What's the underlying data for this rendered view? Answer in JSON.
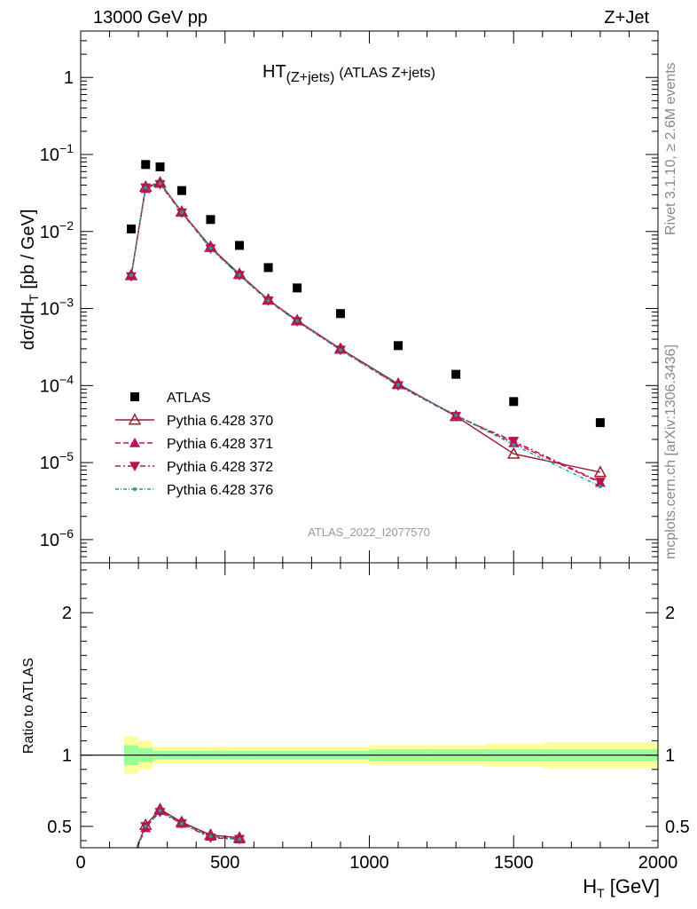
{
  "header": {
    "left": "13000 GeV pp",
    "right": "Z+Jet",
    "title_main": "HT",
    "title_sub": "(Z+jets)",
    "title_rest": "(ATLAS Z+jets)",
    "analysis_id": "ATLAS_2022_I2077570"
  },
  "side_labels": {
    "rivet": "Rivet 3.1.10, ≥ 2.6M events",
    "mcplots": "mcplots.cern.ch [arXiv:1306.3436]"
  },
  "axes": {
    "ylabel_main": "dσ/dH",
    "ylabel_main_sub": "T",
    "ylabel_main_unit": " [pb / GeV]",
    "ylabel_ratio": "Ratio to ATLAS",
    "xlabel": "H",
    "xlabel_sub": "T",
    "xlabel_unit": " [GeV]"
  },
  "colors": {
    "atlas": "#000000",
    "p370": "#9b1b30",
    "p371": "#c0145a",
    "p372": "#b8124f",
    "p376": "#1e9e96",
    "band_inner": "#99ff99",
    "band_outer": "#ffff99"
  },
  "chart_data": {
    "type": "scatter",
    "log_y": true,
    "xlim": [
      0,
      2000
    ],
    "ylim": [
      5e-07,
      4
    ],
    "ratio_ylim": [
      0.35,
      2.35
    ],
    "x_ticks": [
      "0",
      "500",
      "1000",
      "1500",
      "2000"
    ],
    "y_ticks": [
      "10^-6",
      "10^-5",
      "10^-4",
      "10^-3",
      "10^-2",
      "10^-1",
      "1"
    ],
    "ratio_ticks": [
      "0.5",
      "1",
      "2"
    ],
    "x": [
      175,
      225,
      275,
      350,
      450,
      550,
      650,
      750,
      900,
      1100,
      1300,
      1500,
      1800
    ],
    "x_edges": [
      150,
      200,
      250,
      300,
      400,
      500,
      600,
      700,
      800,
      1000,
      1200,
      1400,
      1600,
      2000
    ],
    "series": [
      {
        "name": "ATLAS",
        "style": "square",
        "values": [
          0.0108,
          0.074,
          0.069,
          0.034,
          0.0143,
          0.0066,
          0.0034,
          0.00185,
          0.00086,
          0.00033,
          0.00014,
          6.2e-05,
          3.3e-05
        ]
      },
      {
        "name": "Pythia 6.428 370",
        "style": "open-triangle-up",
        "values": [
          0.0027,
          0.038,
          0.043,
          0.018,
          0.0063,
          0.0028,
          0.0013,
          0.0007,
          0.0003,
          0.000105,
          4e-05,
          1.3e-05,
          7.5e-06
        ]
      },
      {
        "name": "Pythia 6.428 371",
        "style": "filled-triangle-up",
        "values": [
          0.0027,
          0.036,
          0.042,
          0.0178,
          0.0062,
          0.00275,
          0.00128,
          0.00069,
          0.000295,
          0.000102,
          4.1e-05,
          1.8e-05,
          5.5e-06
        ]
      },
      {
        "name": "Pythia 6.428 372",
        "style": "filled-triangle-down",
        "values": [
          0.0026,
          0.037,
          0.041,
          0.0175,
          0.006,
          0.0027,
          0.00126,
          0.00068,
          0.00029,
          0.0001,
          4e-05,
          1.9e-05,
          5.6e-06
        ]
      },
      {
        "name": "Pythia 6.428 376",
        "style": "small-dot",
        "values": [
          0.0027,
          0.037,
          0.042,
          0.0177,
          0.0061,
          0.00272,
          0.00127,
          0.00069,
          0.00029,
          0.000102,
          4.1e-05,
          1.7e-05,
          4.9e-06
        ]
      }
    ],
    "ratio_series": [
      {
        "name": "Pythia 6.428 370",
        "values": [
          0.25,
          0.51,
          0.62,
          0.53,
          0.44,
          0.42
        ]
      },
      {
        "name": "Pythia 6.428 371",
        "values": [
          0.25,
          0.49,
          0.61,
          0.52,
          0.43,
          0.41
        ]
      },
      {
        "name": "Pythia 6.428 372",
        "values": [
          0.24,
          0.5,
          0.6,
          0.52,
          0.42,
          0.41
        ]
      },
      {
        "name": "Pythia 6.428 376",
        "values": [
          0.25,
          0.5,
          0.61,
          0.52,
          0.43,
          0.41
        ]
      }
    ],
    "band": {
      "inner_lo": [
        0.93,
        0.95,
        0.97,
        0.97,
        0.97,
        0.97,
        0.97,
        0.97,
        0.97,
        0.96,
        0.96,
        0.96,
        0.96
      ],
      "inner_hi": [
        1.07,
        1.05,
        1.03,
        1.03,
        1.03,
        1.03,
        1.03,
        1.03,
        1.03,
        1.04,
        1.04,
        1.04,
        1.04
      ],
      "outer_lo": [
        0.87,
        0.9,
        0.94,
        0.94,
        0.94,
        0.94,
        0.94,
        0.94,
        0.94,
        0.93,
        0.93,
        0.92,
        0.91
      ],
      "outer_hi": [
        1.13,
        1.1,
        1.06,
        1.06,
        1.06,
        1.06,
        1.06,
        1.06,
        1.06,
        1.07,
        1.07,
        1.08,
        1.09
      ]
    },
    "legend_position": "lower-left"
  }
}
